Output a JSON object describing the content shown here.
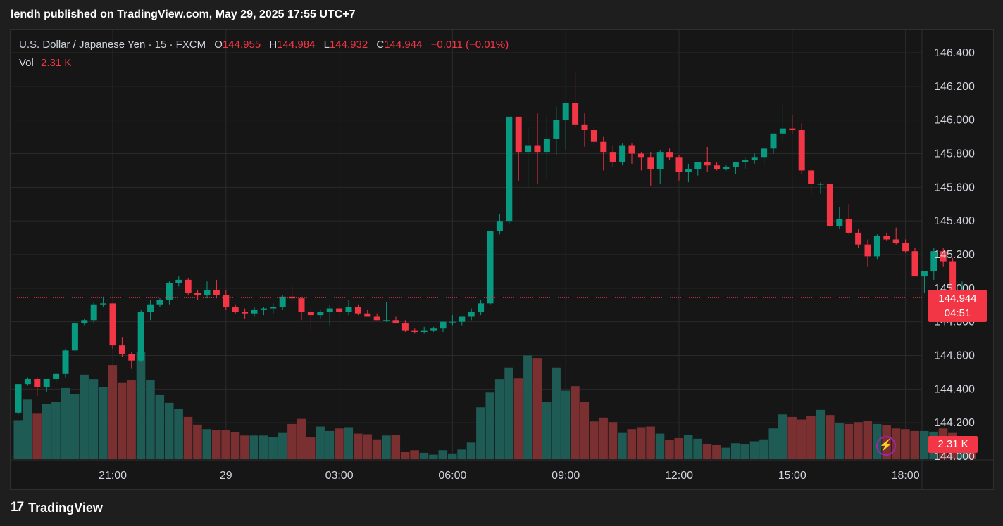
{
  "header": {
    "title": "lendh published on TradingView.com, May 29, 2025 17:55 UTC+7"
  },
  "legend": {
    "symbol": "U.S. Dollar / Japanese Yen · 15 · FXCM",
    "o_label": "O",
    "o_value": "144.955",
    "h_label": "H",
    "h_value": "144.984",
    "l_label": "L",
    "l_value": "144.932",
    "c_label": "C",
    "c_value": "144.944",
    "change": "−0.011 (−0.01%)",
    "vol_label": "Vol",
    "vol_value": "2.31 K"
  },
  "price_tag": {
    "price": "144.944",
    "countdown": "04:51"
  },
  "vol_tag": "2.31 K",
  "footer": {
    "brand": "TradingView"
  },
  "icons": {
    "logo": "tradingview-logo-icon",
    "bolt": "lightning-icon"
  },
  "colors": {
    "up": "#089981",
    "down": "#f23645",
    "background": "#161616",
    "grid": "#2a2a2a",
    "volume_up": "#1e5b55",
    "volume_down": "#7a2f31"
  },
  "chart_data": {
    "type": "candlestick",
    "ylim": [
      144.0,
      146.4
    ],
    "y_ticks": [
      "146.400",
      "146.200",
      "146.000",
      "145.800",
      "145.600",
      "145.400",
      "145.200",
      "145.000",
      "144.800",
      "144.600",
      "144.400",
      "144.200",
      "144.000"
    ],
    "x_ticks": [
      "21:00",
      "29",
      "03:00",
      "06:00",
      "09:00",
      "12:00",
      "15:00",
      "18:00"
    ],
    "last_price": 144.944,
    "candles": [
      [
        144.26,
        144.43,
        144.25,
        144.43,
        61
      ],
      [
        144.43,
        144.47,
        144.42,
        144.46,
        93
      ],
      [
        144.46,
        144.47,
        144.36,
        144.41,
        71
      ],
      [
        144.41,
        144.46,
        144.38,
        144.46,
        86
      ],
      [
        144.46,
        144.5,
        144.44,
        144.49,
        89
      ],
      [
        144.49,
        144.64,
        144.47,
        144.63,
        111
      ],
      [
        144.63,
        144.8,
        144.62,
        144.79,
        101
      ],
      [
        144.79,
        144.82,
        144.78,
        144.81,
        132
      ],
      [
        144.81,
        144.92,
        144.79,
        144.9,
        125
      ],
      [
        144.9,
        144.95,
        144.89,
        144.91,
        112
      ],
      [
        144.91,
        144.9,
        144.64,
        144.66,
        147
      ],
      [
        144.66,
        144.71,
        144.59,
        144.61,
        120
      ],
      [
        144.61,
        144.62,
        144.52,
        144.57,
        124
      ],
      [
        144.57,
        144.87,
        144.56,
        144.86,
        168
      ],
      [
        144.86,
        144.93,
        144.81,
        144.9,
        124
      ],
      [
        144.9,
        144.94,
        144.89,
        144.93,
        100
      ],
      [
        144.93,
        145.04,
        144.9,
        145.03,
        88
      ],
      [
        145.03,
        145.07,
        145.01,
        145.05,
        79
      ],
      [
        145.05,
        145.06,
        144.96,
        144.97,
        66
      ],
      [
        144.97,
        144.99,
        144.93,
        144.96,
        54
      ],
      [
        144.96,
        145.04,
        144.94,
        144.99,
        47
      ],
      [
        144.99,
        145.05,
        144.94,
        144.96,
        45
      ],
      [
        144.96,
        144.99,
        144.87,
        144.89,
        45
      ],
      [
        144.89,
        144.9,
        144.85,
        144.86,
        42
      ],
      [
        144.86,
        144.88,
        144.82,
        144.85,
        37
      ],
      [
        144.85,
        144.89,
        144.83,
        144.87,
        37
      ],
      [
        144.87,
        144.89,
        144.84,
        144.88,
        37
      ],
      [
        144.88,
        144.91,
        144.85,
        144.89,
        34
      ],
      [
        144.89,
        144.96,
        144.87,
        144.95,
        41
      ],
      [
        144.95,
        145.01,
        144.92,
        144.94,
        55
      ],
      [
        144.94,
        144.95,
        144.81,
        144.86,
        63
      ],
      [
        144.86,
        144.88,
        144.75,
        144.84,
        34
      ],
      [
        144.84,
        144.87,
        144.82,
        144.86,
        51
      ],
      [
        144.86,
        144.9,
        144.78,
        144.88,
        44
      ],
      [
        144.88,
        144.89,
        144.84,
        144.86,
        48
      ],
      [
        144.86,
        144.93,
        144.84,
        144.89,
        50
      ],
      [
        144.89,
        144.9,
        144.84,
        144.85,
        40
      ],
      [
        144.85,
        144.87,
        144.83,
        144.83,
        39
      ],
      [
        144.83,
        144.85,
        144.81,
        144.81,
        31
      ],
      [
        144.81,
        144.92,
        144.8,
        144.81,
        37
      ],
      [
        144.81,
        144.83,
        144.79,
        144.79,
        38
      ],
      [
        144.79,
        144.81,
        144.74,
        144.75,
        11
      ],
      [
        144.75,
        144.76,
        144.73,
        144.74,
        14
      ],
      [
        144.74,
        144.77,
        144.73,
        144.75,
        10
      ],
      [
        144.75,
        144.77,
        144.74,
        144.76,
        7
      ],
      [
        144.76,
        144.8,
        144.74,
        144.8,
        14
      ],
      [
        144.8,
        144.84,
        144.78,
        144.8,
        9
      ],
      [
        144.8,
        144.83,
        144.78,
        144.83,
        15
      ],
      [
        144.83,
        144.88,
        144.81,
        144.86,
        26
      ],
      [
        144.86,
        144.93,
        144.84,
        144.91,
        81
      ],
      [
        144.91,
        145.34,
        144.9,
        145.34,
        104
      ],
      [
        145.34,
        145.44,
        145.32,
        145.4,
        125
      ],
      [
        145.4,
        146.02,
        145.38,
        146.02,
        143
      ],
      [
        146.02,
        146.02,
        145.64,
        145.81,
        126
      ],
      [
        145.81,
        145.96,
        145.59,
        145.85,
        162
      ],
      [
        145.85,
        146.04,
        145.62,
        145.81,
        158
      ],
      [
        145.81,
        146.03,
        145.65,
        145.89,
        90
      ],
      [
        145.89,
        146.08,
        145.79,
        146.0,
        143
      ],
      [
        146.0,
        146.1,
        145.82,
        146.1,
        107
      ],
      [
        146.1,
        146.29,
        145.95,
        145.97,
        114
      ],
      [
        145.97,
        146.04,
        145.84,
        145.94,
        89
      ],
      [
        145.94,
        145.96,
        145.85,
        145.87,
        59
      ],
      [
        145.87,
        145.9,
        145.7,
        145.81,
        65
      ],
      [
        145.81,
        145.85,
        145.72,
        145.75,
        58
      ],
      [
        145.75,
        145.86,
        145.73,
        145.85,
        41
      ],
      [
        145.85,
        145.86,
        145.74,
        145.8,
        47
      ],
      [
        145.8,
        145.81,
        145.7,
        145.78,
        50
      ],
      [
        145.78,
        145.81,
        145.61,
        145.71,
        51
      ],
      [
        145.71,
        145.82,
        145.62,
        145.81,
        40
      ],
      [
        145.81,
        145.83,
        145.76,
        145.78,
        30
      ],
      [
        145.78,
        145.79,
        145.64,
        145.69,
        33
      ],
      [
        145.69,
        145.74,
        145.63,
        145.71,
        38
      ],
      [
        145.71,
        145.75,
        145.67,
        145.75,
        32
      ],
      [
        145.75,
        145.84,
        145.69,
        145.73,
        24
      ],
      [
        145.73,
        145.75,
        145.7,
        145.71,
        22
      ],
      [
        145.71,
        145.73,
        145.7,
        145.72,
        18
      ],
      [
        145.72,
        145.75,
        145.68,
        145.75,
        25
      ],
      [
        145.75,
        145.78,
        145.71,
        145.76,
        23
      ],
      [
        145.76,
        145.8,
        145.74,
        145.78,
        28
      ],
      [
        145.78,
        145.82,
        145.73,
        145.83,
        31
      ],
      [
        145.83,
        145.92,
        145.8,
        145.92,
        48
      ],
      [
        145.92,
        146.09,
        145.87,
        145.95,
        70
      ],
      [
        145.95,
        146.03,
        145.92,
        145.94,
        66
      ],
      [
        145.94,
        145.98,
        145.68,
        145.7,
        62
      ],
      [
        145.7,
        145.71,
        145.56,
        145.62,
        67
      ],
      [
        145.62,
        145.63,
        145.56,
        145.62,
        77
      ],
      [
        145.62,
        145.63,
        145.36,
        145.37,
        69
      ],
      [
        145.37,
        145.48,
        145.35,
        145.41,
        56
      ],
      [
        145.41,
        145.5,
        145.32,
        145.33,
        55
      ],
      [
        145.33,
        145.35,
        145.24,
        145.26,
        58
      ],
      [
        145.26,
        145.29,
        145.13,
        145.19,
        60
      ],
      [
        145.19,
        145.32,
        145.17,
        145.31,
        55
      ],
      [
        145.31,
        145.33,
        145.28,
        145.29,
        53
      ],
      [
        145.29,
        145.36,
        145.26,
        145.27,
        48
      ],
      [
        145.27,
        145.29,
        145.21,
        145.22,
        47
      ],
      [
        145.22,
        145.24,
        145.07,
        145.07,
        44
      ],
      [
        145.07,
        145.1,
        144.97,
        145.1,
        44
      ],
      [
        145.1,
        145.24,
        145.05,
        145.22,
        43
      ],
      [
        145.22,
        145.24,
        145.13,
        145.16,
        48
      ],
      [
        145.16,
        145.18,
        144.94,
        144.96,
        41
      ],
      [
        144.96,
        145.04,
        144.92,
        144.96,
        35
      ],
      [
        144.955,
        144.984,
        144.932,
        144.944,
        18
      ]
    ]
  }
}
